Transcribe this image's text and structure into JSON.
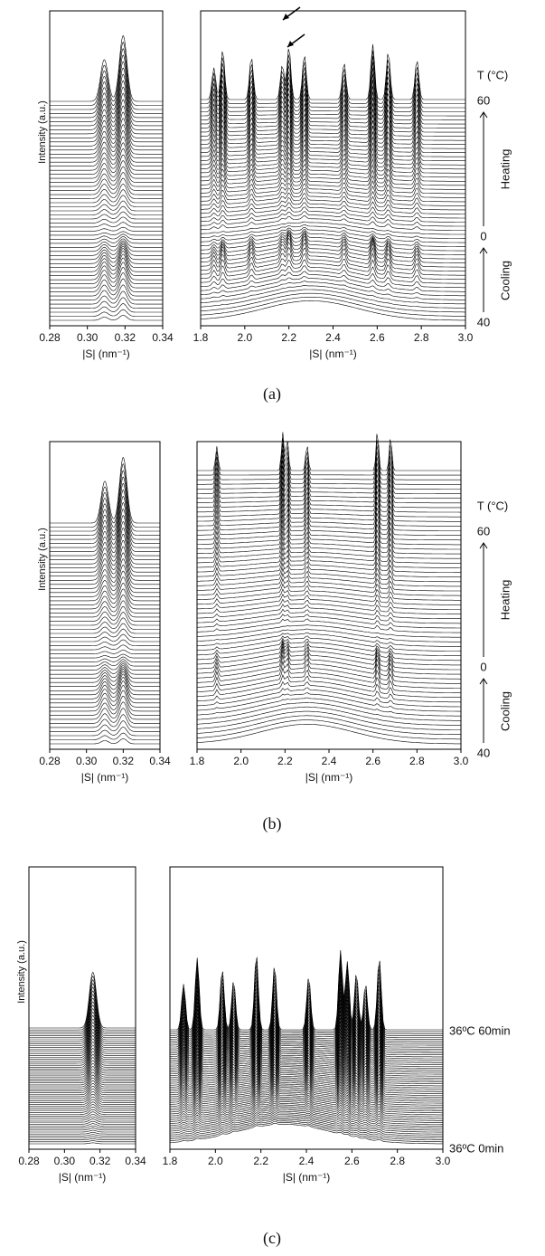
{
  "chart_data": [
    {
      "type": "waterfall",
      "xlim": [
        0.28,
        0.34
      ],
      "xticks": [
        0.28,
        {
          "value": 0.3,
          "label": "0.30"
        },
        0.32,
        0.34
      ],
      "xlabel": "|S| (nm⁻¹)",
      "ylabel": "Intensity (a.u.)",
      "peaks": [
        0.309,
        0.319
      ]
    },
    {
      "type": "waterfall",
      "xlim": [
        1.8,
        3.0
      ],
      "xticks": [
        1.8,
        {
          "value": 2,
          "label": "2.0"
        },
        2.2,
        2.4,
        2.6,
        2.8,
        {
          "value": 3,
          "label": "3.0"
        }
      ],
      "xlabel": "|S| (nm⁻¹)",
      "peaks": [
        1.86,
        1.9,
        2.03,
        2.17,
        2.2,
        2.27,
        2.45,
        2.58,
        2.65,
        2.78
      ]
    },
    {
      "type": "waterfall",
      "xlim": [
        0.28,
        0.34
      ],
      "xticks": [
        0.28,
        {
          "value": 0.3,
          "label": "0.30"
        },
        0.32,
        0.34
      ],
      "xlabel": "|S| (nm⁻¹)",
      "ylabel": "Intensity (a.u.)",
      "peaks": [
        0.31,
        0.32
      ]
    },
    {
      "type": "waterfall",
      "xlim": [
        1.8,
        3.0
      ],
      "xticks": [
        1.8,
        {
          "value": 2,
          "label": "2.0"
        },
        2.2,
        2.4,
        2.6,
        2.8,
        {
          "value": 3,
          "label": "3.0"
        }
      ],
      "xlabel": "|S| (nm⁻¹)",
      "peaks": [
        1.89,
        2.19,
        2.21,
        2.3,
        2.62,
        2.68
      ]
    },
    {
      "type": "waterfall",
      "xlim": [
        0.28,
        0.34
      ],
      "xticks": [
        0.28,
        {
          "value": 0.3,
          "label": "0.30"
        },
        0.32,
        0.34
      ],
      "xlabel": "|S| (nm⁻¹)",
      "ylabel": "Intensity (a.u.)",
      "peaks": [
        0.316
      ]
    },
    {
      "type": "waterfall",
      "xlim": [
        1.8,
        3.0
      ],
      "xticks": [
        1.8,
        {
          "value": 2,
          "label": "2.0"
        },
        2.2,
        2.4,
        2.6,
        2.8,
        {
          "value": 3,
          "label": "3.0"
        }
      ],
      "xlabel": "|S| (nm⁻¹)",
      "peaks": [
        1.86,
        1.92,
        2.03,
        2.08,
        2.18,
        2.26,
        2.41,
        2.55,
        2.58,
        2.62,
        2.66,
        2.72
      ]
    }
  ],
  "captions": [
    "(a)",
    "(b)",
    "(c)"
  ],
  "side_labels": [
    [
      "T (°C)",
      "60",
      "Heating",
      "0",
      "Cooling",
      "40"
    ],
    [
      "T (°C)",
      "60",
      "Heating",
      "0",
      "Cooling",
      "40"
    ],
    [
      "36ºC 60min",
      "36ºC 0min"
    ]
  ]
}
